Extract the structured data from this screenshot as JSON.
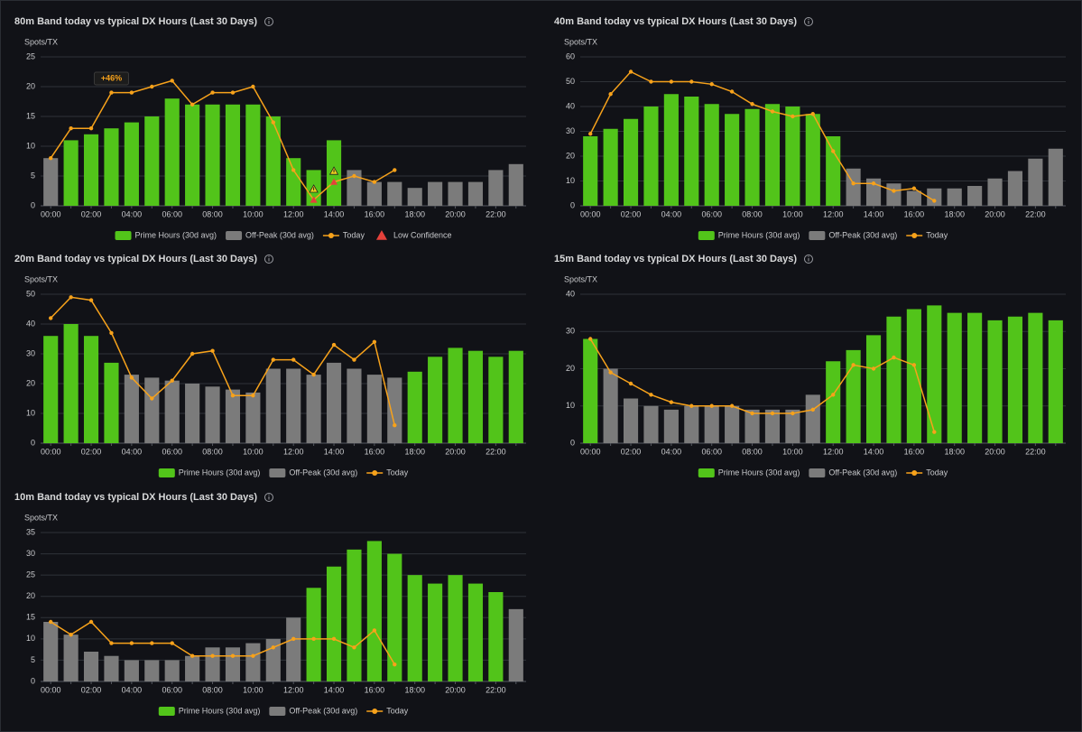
{
  "chart_data": [
    {
      "type": "bar",
      "title": "80m Band today vs typical DX Hours (Last 30 Days)",
      "y_label": "Spots/TX",
      "annotation": "+46%",
      "categories": [
        "00:00",
        null,
        "02:00",
        null,
        "04:00",
        null,
        "06:00",
        null,
        "08:00",
        null,
        "10:00",
        null,
        "12:00",
        null,
        "14:00",
        null,
        "16:00",
        null,
        "18:00",
        null,
        "20:00",
        null,
        "22:00",
        null
      ],
      "ylim": [
        0,
        25
      ],
      "yticks": [
        0,
        5,
        10,
        15,
        20,
        25
      ],
      "grid": true,
      "series": [
        {
          "name": "Prime Hours (30d avg)",
          "type": "bar",
          "color": "#52c41a",
          "values": [
            null,
            11,
            12,
            13,
            14,
            15,
            18,
            17,
            17,
            17,
            17,
            15,
            8,
            6,
            11,
            null,
            null,
            null,
            null,
            null,
            null,
            null,
            null,
            null
          ]
        },
        {
          "name": "Off-Peak (30d avg)",
          "type": "bar",
          "color": "#7b7b7b",
          "values": [
            8,
            null,
            null,
            null,
            null,
            null,
            null,
            null,
            null,
            null,
            null,
            null,
            null,
            null,
            null,
            6,
            4,
            4,
            3,
            4,
            4,
            4,
            6,
            7
          ]
        },
        {
          "name": "Today",
          "type": "line",
          "color": "#f7a21b",
          "values": [
            8,
            13,
            13,
            19,
            19,
            20,
            21,
            17,
            19,
            19,
            20,
            14,
            6,
            1,
            4,
            5,
            4,
            6,
            null,
            null,
            null,
            null,
            null,
            null
          ]
        },
        {
          "name": "Low Confidence",
          "type": "marker",
          "color": "#e5413b",
          "values": [
            null,
            null,
            null,
            null,
            null,
            null,
            null,
            null,
            null,
            null,
            null,
            null,
            null,
            1,
            4,
            null,
            null,
            null,
            null,
            null,
            null,
            null,
            null,
            null
          ]
        }
      ]
    },
    {
      "type": "bar",
      "title": "40m Band today vs typical DX Hours (Last 30 Days)",
      "y_label": "Spots/TX",
      "categories": [
        "00:00",
        null,
        "02:00",
        null,
        "04:00",
        null,
        "06:00",
        null,
        "08:00",
        null,
        "10:00",
        null,
        "12:00",
        null,
        "14:00",
        null,
        "16:00",
        null,
        "18:00",
        null,
        "20:00",
        null,
        "22:00",
        null
      ],
      "ylim": [
        0,
        60
      ],
      "yticks": [
        0,
        10,
        20,
        30,
        40,
        50,
        60
      ],
      "grid": true,
      "series": [
        {
          "name": "Prime Hours (30d avg)",
          "type": "bar",
          "color": "#52c41a",
          "values": [
            28,
            31,
            35,
            40,
            45,
            44,
            41,
            37,
            39,
            41,
            40,
            37,
            28,
            null,
            null,
            null,
            null,
            null,
            null,
            null,
            null,
            null,
            null,
            null
          ]
        },
        {
          "name": "Off-Peak (30d avg)",
          "type": "bar",
          "color": "#7b7b7b",
          "values": [
            null,
            null,
            null,
            null,
            null,
            null,
            null,
            null,
            null,
            null,
            null,
            null,
            null,
            15,
            11,
            9,
            6,
            7,
            7,
            8,
            11,
            14,
            19,
            23
          ]
        },
        {
          "name": "Today",
          "type": "line",
          "color": "#f7a21b",
          "values": [
            29,
            45,
            54,
            50,
            50,
            50,
            49,
            46,
            41,
            38,
            36,
            37,
            22,
            9,
            9,
            6,
            7,
            2,
            null,
            null,
            null,
            null,
            null,
            null
          ]
        }
      ]
    },
    {
      "type": "bar",
      "title": "20m Band today vs typical DX Hours (Last 30 Days)",
      "y_label": "Spots/TX",
      "categories": [
        "00:00",
        null,
        "02:00",
        null,
        "04:00",
        null,
        "06:00",
        null,
        "08:00",
        null,
        "10:00",
        null,
        "12:00",
        null,
        "14:00",
        null,
        "16:00",
        null,
        "18:00",
        null,
        "20:00",
        null,
        "22:00",
        null
      ],
      "ylim": [
        0,
        50
      ],
      "yticks": [
        0,
        10,
        20,
        30,
        40,
        50
      ],
      "grid": true,
      "series": [
        {
          "name": "Prime Hours (30d avg)",
          "type": "bar",
          "color": "#52c41a",
          "values": [
            36,
            40,
            36,
            27,
            null,
            null,
            null,
            null,
            null,
            null,
            null,
            null,
            null,
            null,
            null,
            null,
            null,
            null,
            24,
            29,
            32,
            31,
            29,
            31
          ]
        },
        {
          "name": "Off-Peak (30d avg)",
          "type": "bar",
          "color": "#7b7b7b",
          "values": [
            null,
            null,
            null,
            null,
            23,
            22,
            21,
            20,
            19,
            18,
            17,
            25,
            25,
            23,
            27,
            25,
            23,
            22,
            null,
            null,
            null,
            null,
            null,
            null
          ]
        },
        {
          "name": "Today",
          "type": "line",
          "color": "#f7a21b",
          "values": [
            42,
            49,
            48,
            37,
            22,
            15,
            21,
            30,
            31,
            16,
            16,
            28,
            28,
            23,
            33,
            28,
            34,
            6,
            null,
            null,
            null,
            null,
            null,
            null
          ]
        }
      ]
    },
    {
      "type": "bar",
      "title": "15m Band today vs typical DX Hours (Last 30 Days)",
      "y_label": "Spots/TX",
      "categories": [
        "00:00",
        null,
        "02:00",
        null,
        "04:00",
        null,
        "06:00",
        null,
        "08:00",
        null,
        "10:00",
        null,
        "12:00",
        null,
        "14:00",
        null,
        "16:00",
        null,
        "18:00",
        null,
        "20:00",
        null,
        "22:00",
        null
      ],
      "ylim": [
        0,
        40
      ],
      "yticks": [
        0,
        10,
        20,
        30,
        40
      ],
      "grid": true,
      "series": [
        {
          "name": "Prime Hours (30d avg)",
          "type": "bar",
          "color": "#52c41a",
          "values": [
            28,
            null,
            null,
            null,
            null,
            null,
            null,
            null,
            null,
            null,
            null,
            null,
            22,
            25,
            29,
            34,
            36,
            37,
            35,
            35,
            33,
            34,
            35,
            33
          ]
        },
        {
          "name": "Off-Peak (30d avg)",
          "type": "bar",
          "color": "#7b7b7b",
          "values": [
            null,
            20,
            12,
            10,
            9,
            10,
            10,
            10,
            9,
            9,
            9,
            13,
            null,
            null,
            null,
            null,
            null,
            null,
            null,
            null,
            null,
            null,
            null,
            null
          ]
        },
        {
          "name": "Today",
          "type": "line",
          "color": "#f7a21b",
          "values": [
            28,
            19,
            16,
            13,
            11,
            10,
            10,
            10,
            8,
            8,
            8,
            9,
            13,
            21,
            20,
            23,
            21,
            3,
            null,
            null,
            null,
            null,
            null,
            null
          ]
        }
      ]
    },
    {
      "type": "bar",
      "title": "10m Band today vs typical DX Hours (Last 30 Days)",
      "y_label": "Spots/TX",
      "categories": [
        "00:00",
        null,
        "02:00",
        null,
        "04:00",
        null,
        "06:00",
        null,
        "08:00",
        null,
        "10:00",
        null,
        "12:00",
        null,
        "14:00",
        null,
        "16:00",
        null,
        "18:00",
        null,
        "20:00",
        null,
        "22:00",
        null
      ],
      "ylim": [
        0,
        35
      ],
      "yticks": [
        0,
        5,
        10,
        15,
        20,
        25,
        30,
        35
      ],
      "grid": true,
      "series": [
        {
          "name": "Prime Hours (30d avg)",
          "type": "bar",
          "color": "#52c41a",
          "values": [
            null,
            null,
            null,
            null,
            null,
            null,
            null,
            null,
            null,
            null,
            null,
            null,
            null,
            22,
            27,
            31,
            33,
            30,
            25,
            23,
            25,
            23,
            21,
            null
          ]
        },
        {
          "name": "Off-Peak (30d avg)",
          "type": "bar",
          "color": "#7b7b7b",
          "values": [
            14,
            11,
            7,
            6,
            5,
            5,
            5,
            6,
            8,
            8,
            9,
            10,
            15,
            null,
            null,
            null,
            null,
            null,
            null,
            null,
            null,
            null,
            null,
            17
          ]
        },
        {
          "name": "Today",
          "type": "line",
          "color": "#f7a21b",
          "values": [
            14,
            11,
            14,
            9,
            9,
            9,
            9,
            6,
            6,
            6,
            6,
            8,
            10,
            10,
            10,
            8,
            12,
            4,
            null,
            null,
            null,
            null,
            null,
            null
          ]
        }
      ]
    }
  ]
}
